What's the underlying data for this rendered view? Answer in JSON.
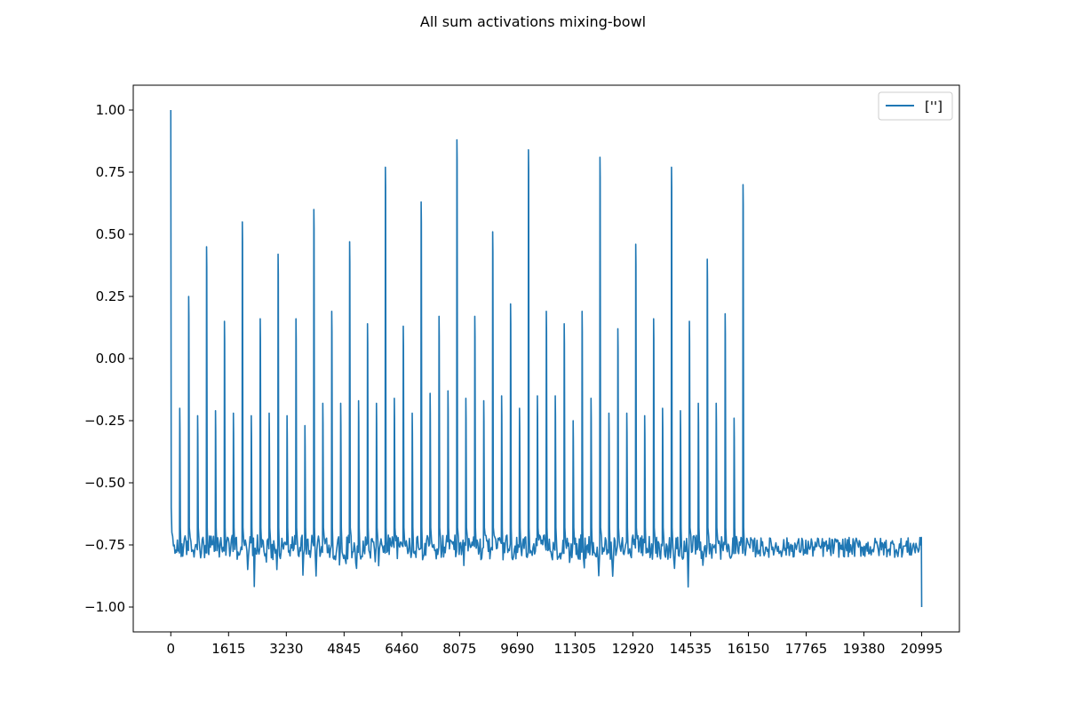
{
  "chart_data": {
    "type": "line",
    "title": "All sum activations mixing-bowl",
    "xlabel": "",
    "ylabel": "",
    "xlim": [
      -1050,
      22050
    ],
    "ylim": [
      -1.1,
      1.1
    ],
    "x_ticks": [
      0,
      1615,
      3230,
      4845,
      6460,
      8075,
      9690,
      11305,
      12920,
      14535,
      16150,
      17765,
      19380,
      20995
    ],
    "y_ticks": [
      1.0,
      0.75,
      0.5,
      0.25,
      0.0,
      -0.25,
      -0.5,
      -0.75,
      -1.0
    ],
    "y_tick_labels": [
      "1.00",
      "0.75",
      "0.50",
      "0.25",
      "0.00",
      "−0.25",
      "−0.50",
      "−0.75",
      "−1.00"
    ],
    "grid": false,
    "legend_position": "top-right",
    "series": [
      {
        "name": "['']",
        "color": "#1f77b4",
        "x_start": 0,
        "x_end": 20995,
        "start_value": 1.0,
        "end_value": -1.0,
        "baseline_approx": -0.76,
        "peaks": [
          [
            0,
            1.0
          ],
          [
            250,
            -0.2
          ],
          [
            500,
            0.25
          ],
          [
            750,
            -0.23
          ],
          [
            1000,
            0.45
          ],
          [
            1250,
            -0.21
          ],
          [
            1500,
            0.15
          ],
          [
            1750,
            -0.22
          ],
          [
            2000,
            0.55
          ],
          [
            2250,
            -0.23
          ],
          [
            2500,
            0.16
          ],
          [
            2750,
            -0.22
          ],
          [
            3000,
            0.42
          ],
          [
            3250,
            -0.23
          ],
          [
            3500,
            0.16
          ],
          [
            3750,
            -0.27
          ],
          [
            4000,
            0.6
          ],
          [
            4250,
            -0.18
          ],
          [
            4500,
            0.19
          ],
          [
            4750,
            -0.18
          ],
          [
            5000,
            0.47
          ],
          [
            5250,
            -0.17
          ],
          [
            5500,
            0.14
          ],
          [
            5750,
            -0.18
          ],
          [
            6000,
            0.77
          ],
          [
            6250,
            -0.16
          ],
          [
            6500,
            0.13
          ],
          [
            6750,
            -0.22
          ],
          [
            7000,
            0.63
          ],
          [
            7250,
            -0.14
          ],
          [
            7500,
            0.17
          ],
          [
            7750,
            -0.13
          ],
          [
            8000,
            0.88
          ],
          [
            8250,
            -0.16
          ],
          [
            8500,
            0.17
          ],
          [
            8750,
            -0.17
          ],
          [
            9000,
            0.51
          ],
          [
            9250,
            -0.15
          ],
          [
            9500,
            0.22
          ],
          [
            9750,
            -0.2
          ],
          [
            10000,
            0.84
          ],
          [
            10250,
            -0.15
          ],
          [
            10500,
            0.19
          ],
          [
            10750,
            -0.15
          ],
          [
            11000,
            0.14
          ],
          [
            11250,
            -0.25
          ],
          [
            11500,
            0.19
          ],
          [
            11750,
            -0.16
          ],
          [
            12000,
            0.81
          ],
          [
            12250,
            -0.22
          ],
          [
            12500,
            0.12
          ],
          [
            12750,
            -0.22
          ],
          [
            13000,
            0.46
          ],
          [
            13250,
            -0.23
          ],
          [
            13500,
            0.16
          ],
          [
            13750,
            -0.2
          ],
          [
            14000,
            0.77
          ],
          [
            14250,
            -0.21
          ],
          [
            14500,
            0.15
          ],
          [
            14750,
            -0.18
          ],
          [
            15000,
            0.4
          ],
          [
            15250,
            -0.18
          ],
          [
            15500,
            0.18
          ],
          [
            15750,
            -0.24
          ],
          [
            16000,
            0.7
          ]
        ]
      }
    ]
  }
}
